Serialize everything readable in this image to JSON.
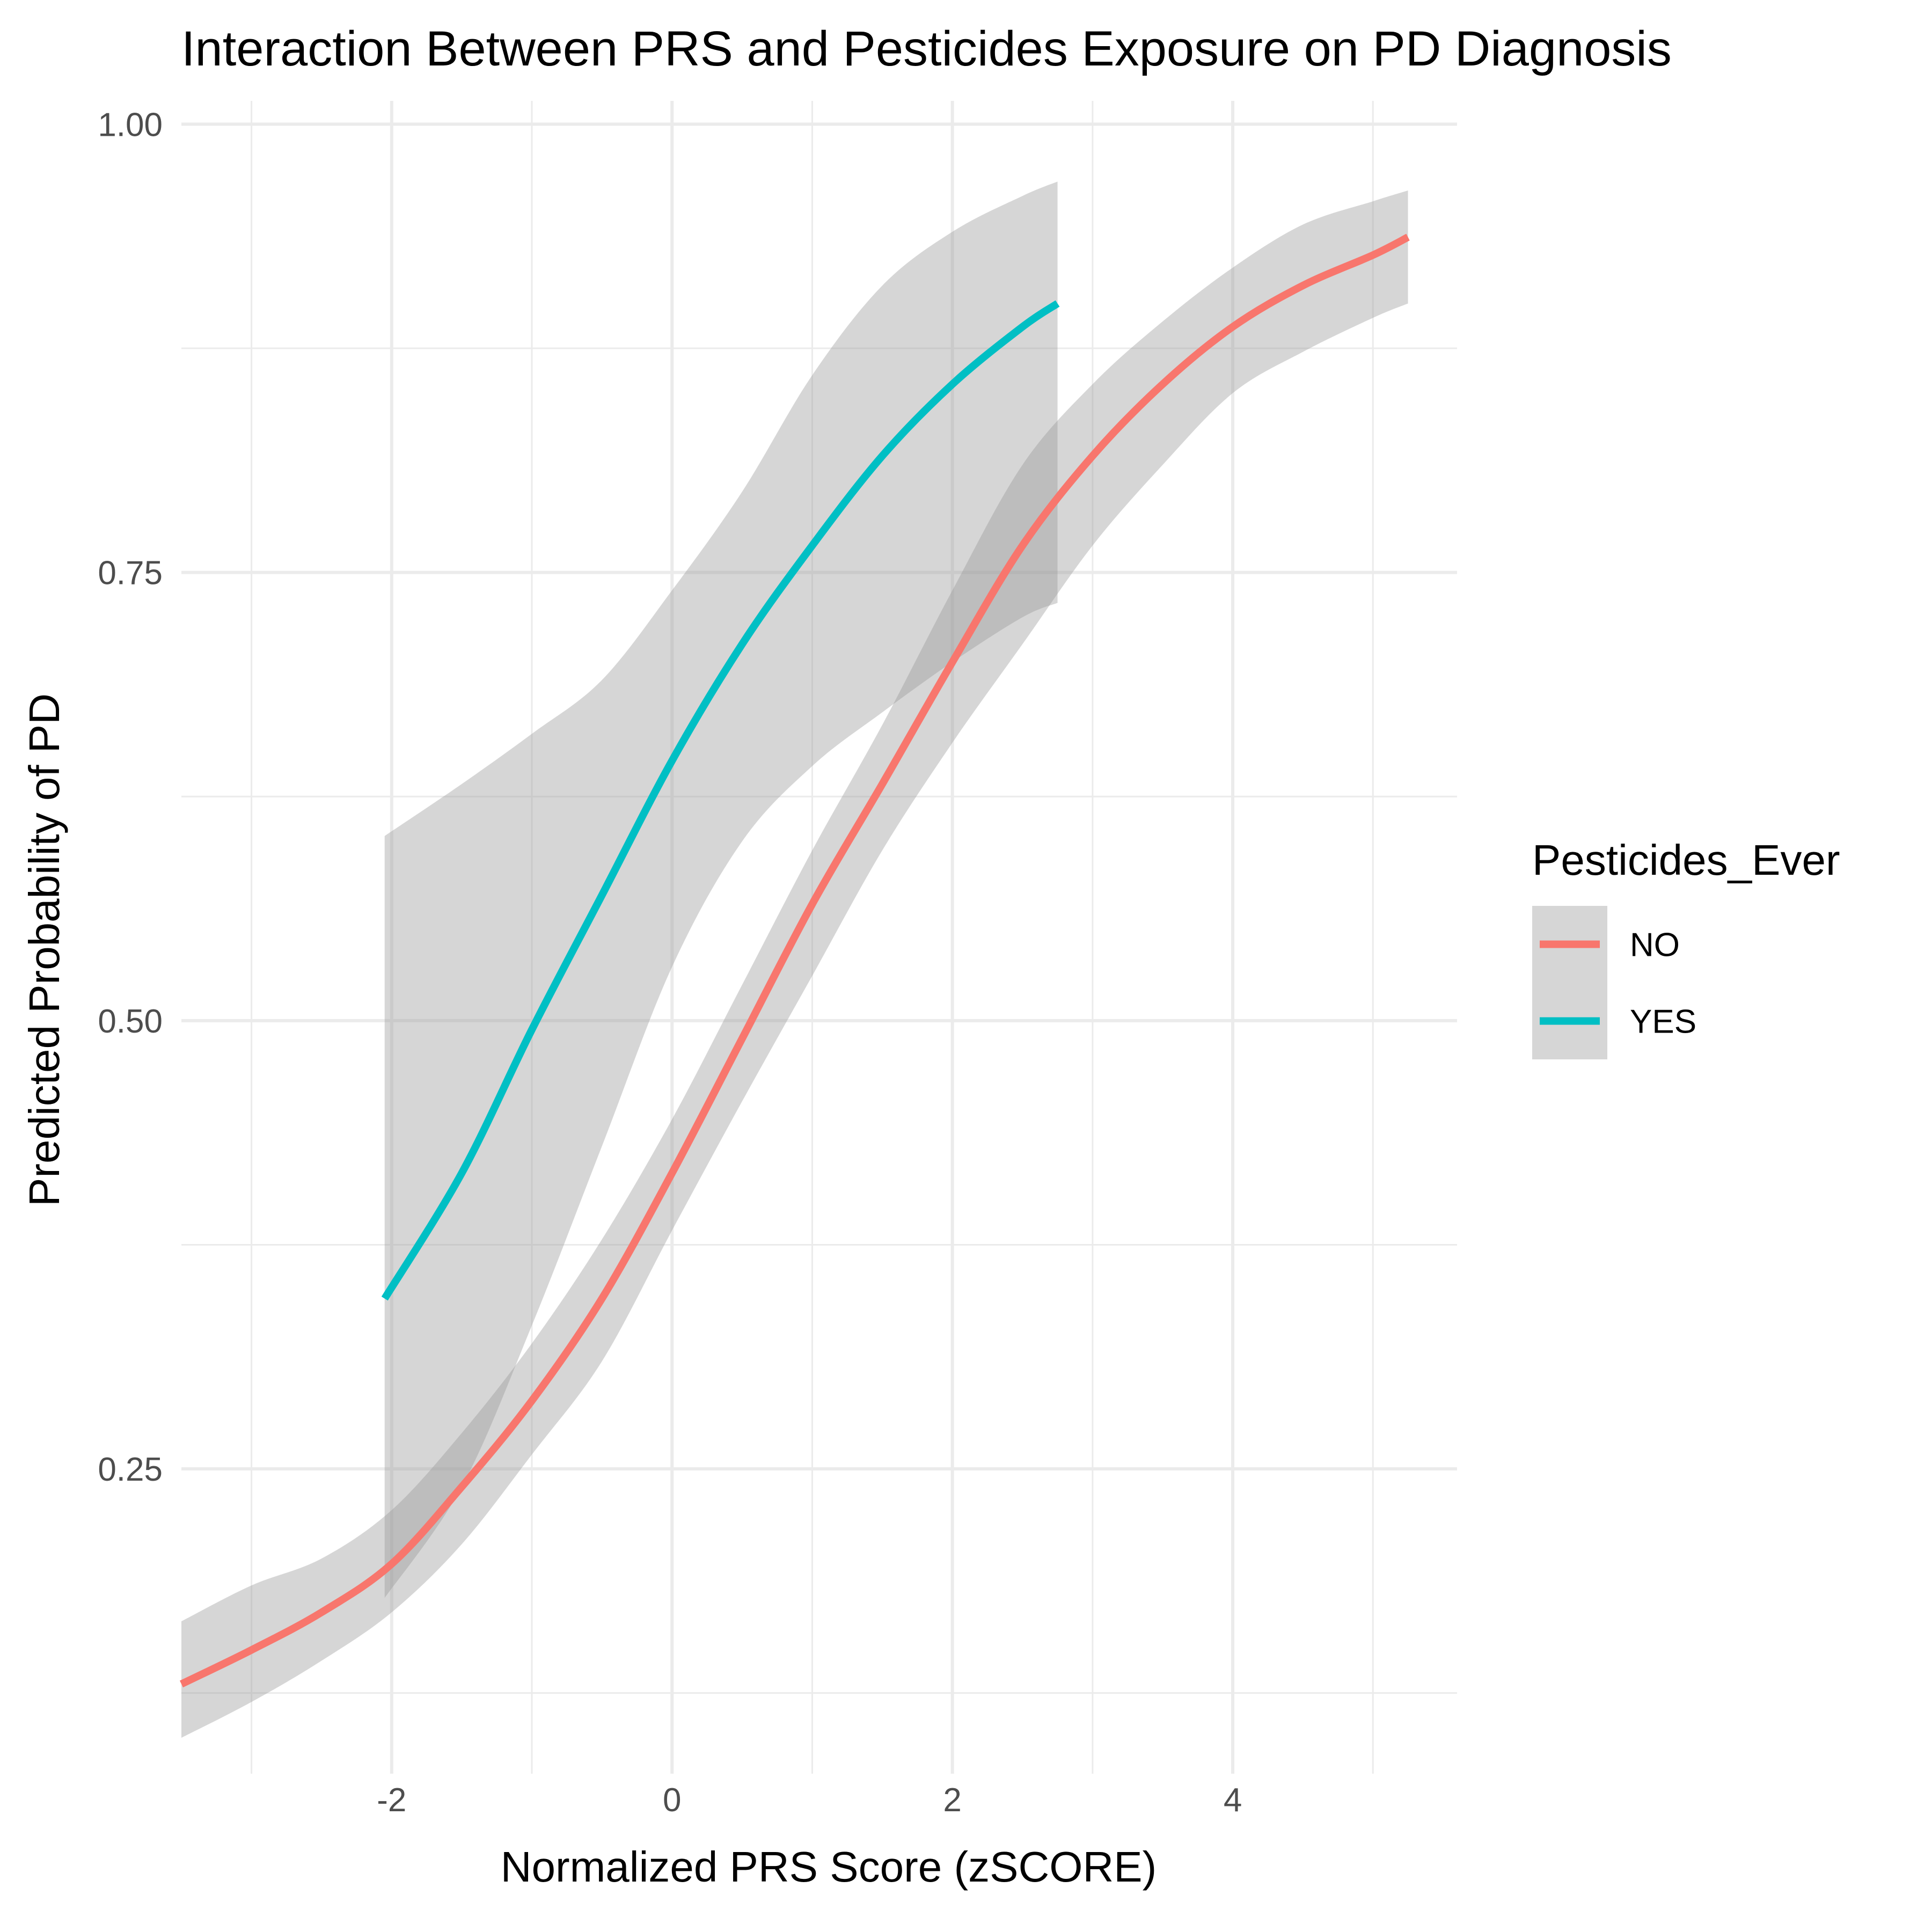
{
  "chart_data": {
    "type": "line",
    "title": "Interaction Between PRS and Pesticides Exposure on PD Diagnosis",
    "xlabel": "Normalized PRS Score (zSCORE)",
    "ylabel": "Predicted Probability of PD",
    "xlim": [
      -3.5,
      5.6
    ],
    "ylim": [
      0.08,
      1.013
    ],
    "x_ticks": [
      -2,
      0,
      2,
      4
    ],
    "x_tick_labels": [
      "-2",
      "0",
      "2",
      "4"
    ],
    "y_ticks": [
      0.25,
      0.5,
      0.75,
      1.0
    ],
    "y_tick_labels": [
      "0.25",
      "0.50",
      "0.75",
      "1.00"
    ],
    "grid": true,
    "legend": {
      "title": "Pesticides_Ever",
      "position": "right",
      "entries": [
        "NO",
        "YES"
      ]
    },
    "series": [
      {
        "name": "NO",
        "color": "#F8766D",
        "x": [
          -3.5,
          -3.0,
          -2.5,
          -2.0,
          -1.5,
          -1.0,
          -0.5,
          0.0,
          0.5,
          1.0,
          1.5,
          2.0,
          2.5,
          3.0,
          3.5,
          4.0,
          4.5,
          5.0,
          5.25
        ],
        "y": [
          0.13,
          0.149,
          0.17,
          0.197,
          0.24,
          0.288,
          0.345,
          0.415,
          0.49,
          0.565,
          0.632,
          0.7,
          0.765,
          0.815,
          0.855,
          0.887,
          0.91,
          0.927,
          0.937
        ],
        "lower": [
          0.1,
          0.12,
          0.143,
          0.17,
          0.208,
          0.258,
          0.31,
          0.383,
          0.455,
          0.525,
          0.595,
          0.655,
          0.71,
          0.765,
          0.81,
          0.85,
          0.873,
          0.892,
          0.9
        ],
        "upper": [
          0.165,
          0.185,
          0.2,
          0.227,
          0.27,
          0.32,
          0.378,
          0.445,
          0.52,
          0.595,
          0.665,
          0.74,
          0.81,
          0.855,
          0.89,
          0.92,
          0.944,
          0.957,
          0.963
        ]
      },
      {
        "name": "YES",
        "color": "#00BFC4",
        "x": [
          -2.05,
          -1.5,
          -1.0,
          -0.5,
          0.0,
          0.5,
          1.0,
          1.5,
          2.0,
          2.5,
          2.75
        ],
        "y": [
          0.345,
          0.415,
          0.495,
          0.57,
          0.645,
          0.71,
          0.765,
          0.815,
          0.855,
          0.887,
          0.9
        ],
        "lower": [
          0.178,
          0.24,
          0.33,
          0.43,
          0.53,
          0.6,
          0.642,
          0.672,
          0.7,
          0.725,
          0.733
        ],
        "upper": [
          0.603,
          0.632,
          0.66,
          0.69,
          0.74,
          0.795,
          0.86,
          0.91,
          0.94,
          0.96,
          0.968
        ]
      }
    ]
  }
}
